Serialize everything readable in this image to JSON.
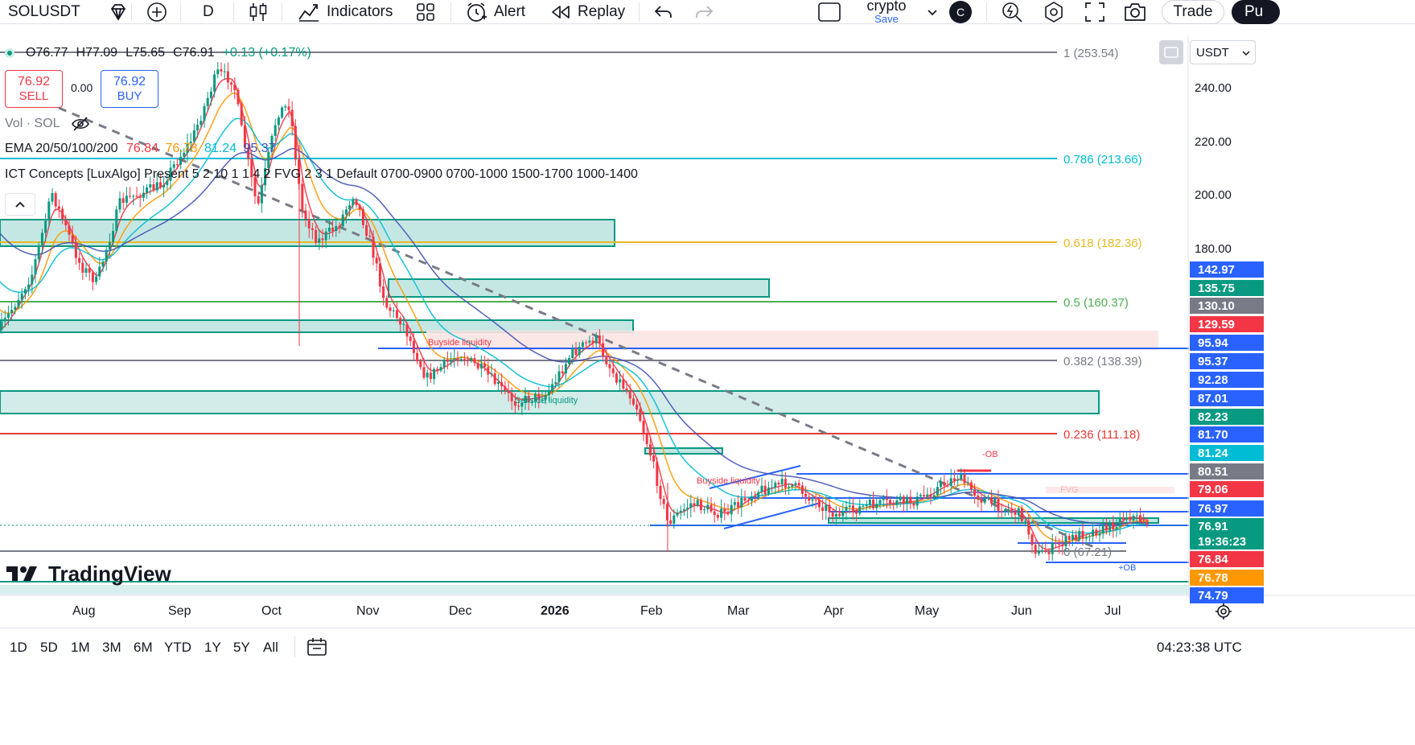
{
  "toolbar": {
    "symbol": "SOLUSDT",
    "interval": "D",
    "indicators_label": "Indicators",
    "alert_label": "Alert",
    "replay_label": "Replay",
    "layout_name": "crypto",
    "layout_status": "Save",
    "avatar_letter": "C",
    "trade_label": "Trade",
    "publish_label": "Pu"
  },
  "legend": {
    "open": "O76.77",
    "high": "H77.09",
    "low": "L75.65",
    "close": "C76.91",
    "change": "+0.13 (+0.17%)",
    "sell_price": "76.92",
    "sell_label": "SELL",
    "spread": "0.00",
    "buy_price": "76.92",
    "buy_label": "BUY",
    "vol": "Vol · SOL",
    "ema_name": "EMA 20/50/100/200",
    "ema20": "76.84",
    "ema50": "76.78",
    "ema100": "81.24",
    "ema200": "95.37",
    "ict": "ICT Concepts [LuxAlgo] Present 5 2 10 1 1 4 2 FVG 2 3 1 Default 0700-0900 0700-1000 1500-1700 1000-1400"
  },
  "fib_levels": [
    {
      "label": "1 (253.54)",
      "color": "#787b86"
    },
    {
      "label": "0.786 (213.66)",
      "color": "#00bcd4"
    },
    {
      "label": "0.618 (182.36)",
      "color": "#e8b923"
    },
    {
      "label": "0.5 (160.37)",
      "color": "#4caf50"
    },
    {
      "label": "0.382 (138.39)",
      "color": "#787b86"
    },
    {
      "label": "0.236 (111.18)",
      "color": "#e53935"
    },
    {
      "label": "0 (67.21)",
      "color": "#787b86"
    }
  ],
  "chart_annotations": {
    "buyside_1": "Buyside liquidity",
    "sellside_1": "Sellside liquidity",
    "buyside_2": "Buyside liquidity",
    "neg_ob": "-OB",
    "fvg": "FVG",
    "pos_ob": "+OB"
  },
  "price_axis": {
    "currency": "USDT",
    "ticks": [
      "240.00",
      "220.00",
      "200.00",
      "180.00"
    ],
    "tags": [
      {
        "value": "142.97",
        "color": "#2962ff"
      },
      {
        "value": "135.75",
        "color": "#089981"
      },
      {
        "value": "130.10",
        "color": "#787b86"
      },
      {
        "value": "129.59",
        "color": "#f23645"
      },
      {
        "value": "95.94",
        "color": "#2962ff"
      },
      {
        "value": "95.37",
        "color": "#2962ff"
      },
      {
        "value": "92.28",
        "color": "#2962ff"
      },
      {
        "value": "87.01",
        "color": "#2962ff"
      },
      {
        "value": "82.23",
        "color": "#089981"
      },
      {
        "value": "81.70",
        "color": "#2962ff"
      },
      {
        "value": "81.24",
        "color": "#00bcd4"
      },
      {
        "value": "80.51",
        "color": "#787b86"
      },
      {
        "value": "79.06",
        "color": "#f23645"
      },
      {
        "value": "76.97",
        "color": "#2962ff"
      },
      {
        "value": "76.91",
        "color": "#089981"
      },
      {
        "value": "19:36:23",
        "color": "#089981"
      },
      {
        "value": "76.84",
        "color": "#f23645"
      },
      {
        "value": "76.78",
        "color": "#ff9800"
      },
      {
        "value": "74.79",
        "color": "#2962ff"
      }
    ]
  },
  "time_axis": [
    "Aug",
    "Sep",
    "Oct",
    "Nov",
    "Dec",
    "2026",
    "Feb",
    "Mar",
    "Apr",
    "May",
    "Jun",
    "Jul"
  ],
  "ranges": [
    "1D",
    "5D",
    "1M",
    "3M",
    "6M",
    "YTD",
    "1Y",
    "5Y",
    "All"
  ],
  "clock": "04:23:38 UTC",
  "brand": "TradingView",
  "colors": {
    "up": "#089981",
    "down": "#f23645",
    "ema20": "#f23645",
    "ema50": "#ff9800",
    "ema100": "#00bcd4",
    "ema200": "#3f51b5"
  }
}
